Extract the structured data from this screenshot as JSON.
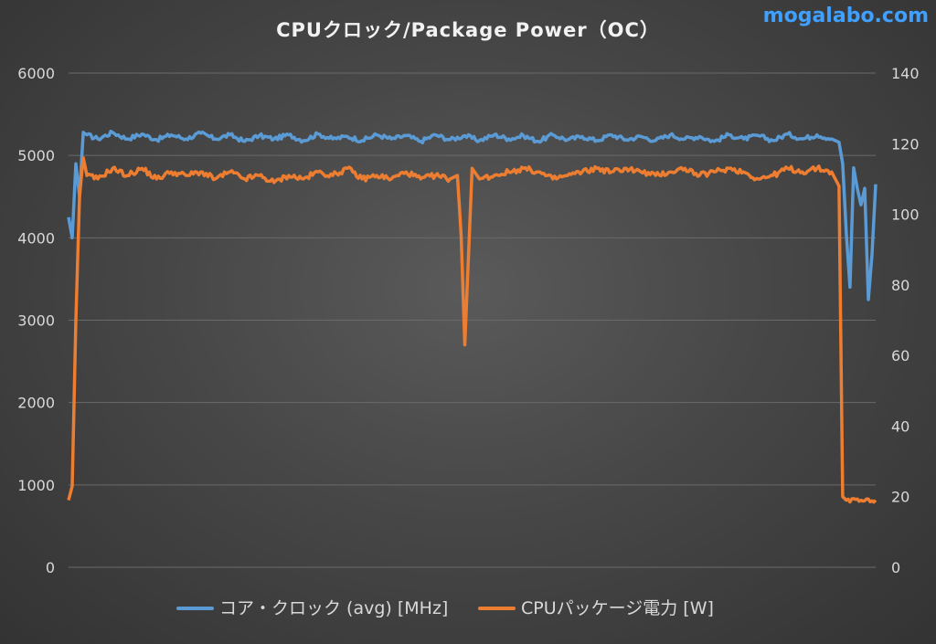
{
  "watermark": "mogalabo.com",
  "chart_data": {
    "type": "line",
    "title": "CPUクロック/Package Power（OC）",
    "xlabel": "",
    "ylabel": "",
    "y_left": {
      "range": [
        0,
        6000
      ],
      "ticks": [
        "0",
        "1000",
        "2000",
        "3000",
        "4000",
        "5000",
        "6000"
      ]
    },
    "y_right": {
      "range": [
        0,
        140
      ],
      "ticks": [
        "0",
        "20",
        "40",
        "60",
        "80",
        "100",
        "120",
        "140"
      ]
    },
    "grid": true,
    "legend_position": "bottom",
    "x_count": 221,
    "series": [
      {
        "name": "コア・クロック (avg) [MHz]",
        "axis": "left",
        "color": "#5b9bd5",
        "points": [
          [
            0,
            4250
          ],
          [
            1,
            4000
          ],
          [
            2,
            4900
          ],
          [
            3,
            4500
          ],
          [
            4,
            5280
          ],
          [
            5,
            5250
          ],
          [
            8,
            5200
          ],
          [
            12,
            5280
          ],
          [
            16,
            5200
          ],
          [
            20,
            5260
          ],
          [
            24,
            5190
          ],
          [
            28,
            5250
          ],
          [
            32,
            5200
          ],
          [
            36,
            5270
          ],
          [
            40,
            5200
          ],
          [
            44,
            5250
          ],
          [
            48,
            5170
          ],
          [
            52,
            5240
          ],
          [
            56,
            5200
          ],
          [
            60,
            5250
          ],
          [
            64,
            5180
          ],
          [
            68,
            5260
          ],
          [
            72,
            5200
          ],
          [
            76,
            5230
          ],
          [
            80,
            5180
          ],
          [
            84,
            5250
          ],
          [
            88,
            5200
          ],
          [
            92,
            5240
          ],
          [
            96,
            5170
          ],
          [
            100,
            5250
          ],
          [
            104,
            5190
          ],
          [
            108,
            5240
          ],
          [
            112,
            5180
          ],
          [
            116,
            5250
          ],
          [
            120,
            5200
          ],
          [
            124,
            5240
          ],
          [
            128,
            5170
          ],
          [
            132,
            5250
          ],
          [
            136,
            5190
          ],
          [
            140,
            5230
          ],
          [
            144,
            5180
          ],
          [
            148,
            5250
          ],
          [
            152,
            5190
          ],
          [
            156,
            5230
          ],
          [
            160,
            5180
          ],
          [
            164,
            5250
          ],
          [
            168,
            5200
          ],
          [
            172,
            5230
          ],
          [
            176,
            5170
          ],
          [
            180,
            5250
          ],
          [
            184,
            5200
          ],
          [
            188,
            5240
          ],
          [
            192,
            5180
          ],
          [
            196,
            5260
          ],
          [
            200,
            5200
          ],
          [
            204,
            5250
          ],
          [
            208,
            5200
          ],
          [
            210,
            5160
          ],
          [
            211,
            4900
          ],
          [
            212,
            4050
          ],
          [
            213,
            3400
          ],
          [
            214,
            4850
          ],
          [
            215,
            4600
          ],
          [
            216,
            4400
          ],
          [
            217,
            4600
          ],
          [
            218,
            3250
          ],
          [
            219,
            3800
          ],
          [
            220,
            4650
          ]
        ]
      },
      {
        "name": "CPUパッケージ電力 [W]",
        "axis": "right",
        "color": "#ed7d31",
        "points": [
          [
            0,
            19
          ],
          [
            1,
            23
          ],
          [
            2,
            70
          ],
          [
            3,
            105
          ],
          [
            4,
            116
          ],
          [
            5,
            111
          ],
          [
            8,
            110
          ],
          [
            12,
            113
          ],
          [
            16,
            111
          ],
          [
            20,
            113
          ],
          [
            24,
            110
          ],
          [
            28,
            112
          ],
          [
            32,
            111
          ],
          [
            36,
            112
          ],
          [
            40,
            110
          ],
          [
            44,
            112
          ],
          [
            48,
            110
          ],
          [
            52,
            111
          ],
          [
            56,
            109
          ],
          [
            60,
            111
          ],
          [
            64,
            110
          ],
          [
            68,
            112
          ],
          [
            72,
            111
          ],
          [
            76,
            113
          ],
          [
            80,
            110
          ],
          [
            84,
            111
          ],
          [
            88,
            110
          ],
          [
            92,
            112
          ],
          [
            96,
            110
          ],
          [
            100,
            111
          ],
          [
            104,
            110
          ],
          [
            106,
            111
          ],
          [
            107,
            94
          ],
          [
            108,
            63
          ],
          [
            109,
            88
          ],
          [
            110,
            113
          ],
          [
            112,
            110
          ],
          [
            116,
            111
          ],
          [
            120,
            112
          ],
          [
            124,
            113
          ],
          [
            128,
            112
          ],
          [
            132,
            110
          ],
          [
            136,
            111
          ],
          [
            140,
            112
          ],
          [
            144,
            113
          ],
          [
            148,
            112
          ],
          [
            152,
            113
          ],
          [
            156,
            112
          ],
          [
            160,
            111
          ],
          [
            164,
            112
          ],
          [
            168,
            113
          ],
          [
            172,
            111
          ],
          [
            176,
            112
          ],
          [
            180,
            113
          ],
          [
            184,
            112
          ],
          [
            188,
            110
          ],
          [
            192,
            111
          ],
          [
            196,
            113
          ],
          [
            200,
            112
          ],
          [
            204,
            113
          ],
          [
            208,
            112
          ],
          [
            210,
            108
          ],
          [
            211,
            20
          ],
          [
            212,
            19
          ],
          [
            216,
            19
          ],
          [
            220,
            19
          ]
        ]
      }
    ]
  }
}
